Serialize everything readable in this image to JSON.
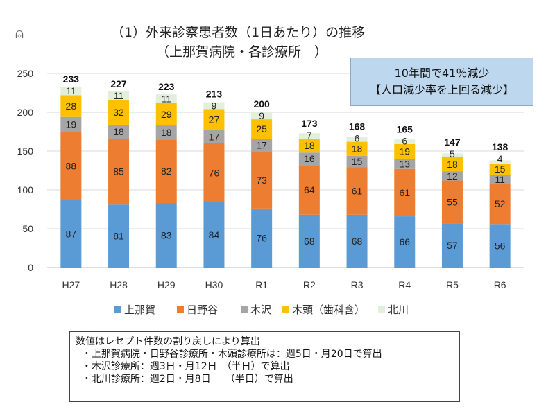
{
  "title": "（1）外来診察患者数（1日あたり）の推移",
  "subtitle": "（上那賀病院・各診療所　）",
  "icon": "person-icon",
  "callout": {
    "line1": "10年間で41％減少",
    "line2": "【人口減少率を上回る減少】"
  },
  "note": {
    "lines": [
      "数値はレセプト件数の割り戻しにより算出",
      "  ・上那賀病院・日野谷診療所・木頭診療所は：週5日・月20日で算出",
      "  ・木沢診療所：週3日・月12日　（半日）で算出",
      "  ・北川診療所：週2日・月8日　　（半日）で算出"
    ]
  },
  "chart_data": {
    "type": "bar",
    "stacked": true,
    "categories": [
      "H27",
      "H28",
      "H29",
      "H30",
      "R1",
      "R2",
      "R3",
      "R4",
      "R5",
      "R6"
    ],
    "series": [
      {
        "name": "上那賀",
        "color": "#5b9bd5",
        "values": [
          87,
          81,
          83,
          84,
          76,
          68,
          68,
          66,
          57,
          56
        ]
      },
      {
        "name": "日野谷",
        "color": "#ed7d31",
        "values": [
          88,
          85,
          82,
          76,
          73,
          64,
          61,
          61,
          55,
          52
        ]
      },
      {
        "name": "木沢",
        "color": "#a5a5a5",
        "values": [
          19,
          18,
          18,
          17,
          17,
          16,
          15,
          13,
          12,
          11
        ]
      },
      {
        "name": "木頭（歯科含）",
        "color": "#ffc000",
        "values": [
          28,
          32,
          29,
          27,
          25,
          18,
          18,
          19,
          18,
          15
        ]
      },
      {
        "name": "北川",
        "color": "#e2efda",
        "values": [
          11,
          11,
          11,
          9,
          9,
          7,
          6,
          6,
          5,
          4
        ]
      }
    ],
    "totals": [
      233,
      227,
      223,
      213,
      200,
      173,
      168,
      165,
      147,
      138
    ],
    "ylim": [
      0,
      250
    ],
    "yticks": [
      0,
      50,
      100,
      150,
      200,
      250
    ],
    "grid": true,
    "legend": "bottom"
  }
}
